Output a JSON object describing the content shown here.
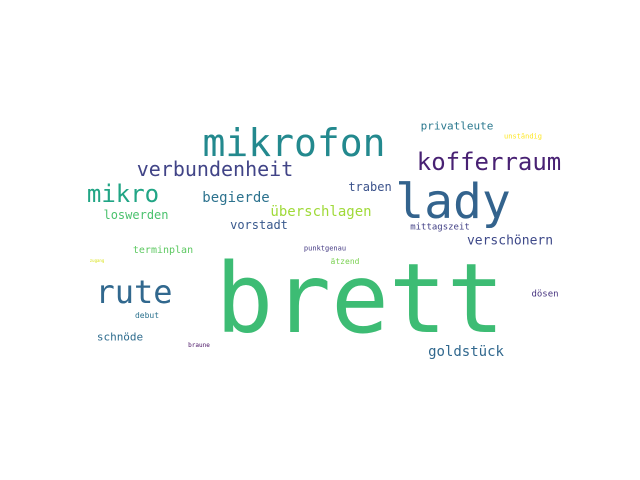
{
  "wordcloud": {
    "words": [
      {
        "text": "brett",
        "color": "#3dbc74"
      },
      {
        "text": "lady",
        "color": "#33638d"
      },
      {
        "text": "mikrofon",
        "color": "#23898e"
      },
      {
        "text": "rute",
        "color": "#31688e"
      },
      {
        "text": "kofferraum",
        "color": "#482173"
      },
      {
        "text": "verbundenheit",
        "color": "#414487"
      },
      {
        "text": "mikro",
        "color": "#21a585"
      },
      {
        "text": "überschlagen",
        "color": "#a0da39"
      },
      {
        "text": "begierde",
        "color": "#2c728e"
      },
      {
        "text": "loswerden",
        "color": "#4ac16d"
      },
      {
        "text": "traben",
        "color": "#3b528b"
      },
      {
        "text": "vorstadt",
        "color": "#38588c"
      },
      {
        "text": "verschönern",
        "color": "#3e4989"
      },
      {
        "text": "mittagszeit",
        "color": "#424086"
      },
      {
        "text": "privatleute",
        "color": "#2a788e"
      },
      {
        "text": "unständig",
        "color": "#fde725"
      },
      {
        "text": "terminplan",
        "color": "#5ec962"
      },
      {
        "text": "punktgenau",
        "color": "#443a83"
      },
      {
        "text": "ätzend",
        "color": "#7ad151"
      },
      {
        "text": "goldstück",
        "color": "#31688e"
      },
      {
        "text": "schnöde",
        "color": "#2f6c8e"
      },
      {
        "text": "dösen",
        "color": "#46337f"
      },
      {
        "text": "debut",
        "color": "#2c728e"
      },
      {
        "text": "braune",
        "color": "#471063"
      },
      {
        "text": "zugang",
        "color": "#d8e219"
      }
    ]
  }
}
